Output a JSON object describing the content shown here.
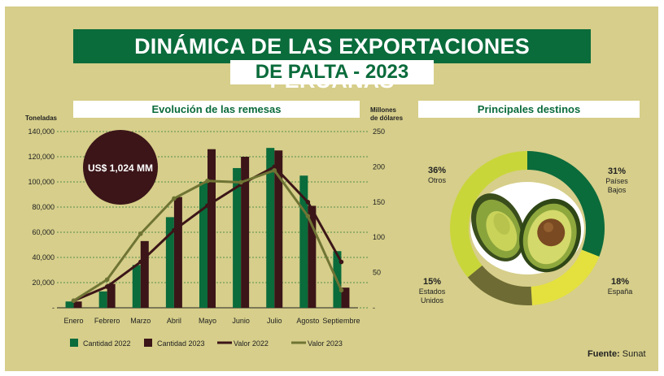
{
  "title": {
    "line1": "DINÁMICA DE LAS EXPORTACIONES PERUANAS",
    "line2": "DE PALTA - 2023"
  },
  "colors": {
    "background": "#d6ce8a",
    "brand_green": "#0a6b3b",
    "dark_brown": "#3b1518",
    "olive": "#6f7434",
    "lime": "#c9d63a",
    "yellow": "#e4e13f",
    "olive_dark": "#6e6b34"
  },
  "left_section": {
    "heading": "Evolución de las remesas",
    "left_axis_title": "Toneladas",
    "right_axis_title_1": "Millones",
    "right_axis_title_2": "de dólares",
    "badge": "US$ 1,024 MM"
  },
  "right_section": {
    "heading": "Principales destinos"
  },
  "source": {
    "label": "Fuente:",
    "value": "Sunat"
  },
  "chart_data": [
    {
      "type": "bar",
      "title": "Evolución de las remesas",
      "categories": [
        "Enero",
        "Febrero",
        "Marzo",
        "Abril",
        "Mayo",
        "Junio",
        "Julio",
        "Agosto",
        "Septiembre"
      ],
      "ylabel": "Toneladas",
      "ylim": [
        0,
        140000
      ],
      "yticks": [
        "-",
        "20,000",
        "40,000",
        "60,000",
        "80,000",
        "100,000",
        "120,000",
        "140,000"
      ],
      "y2label": "Millones de dólares",
      "y2lim": [
        0,
        250
      ],
      "y2ticks": [
        "-",
        "50",
        "100",
        "150",
        "200",
        "250"
      ],
      "series": [
        {
          "name": "Cantidad 2022",
          "kind": "bar",
          "axis": "left",
          "color": "#0a6b3b",
          "values": [
            5000,
            13000,
            34000,
            72000,
            100000,
            111000,
            127000,
            105000,
            45000
          ]
        },
        {
          "name": "Cantidad 2023",
          "kind": "bar",
          "axis": "left",
          "color": "#3b1518",
          "values": [
            5000,
            19000,
            53000,
            88000,
            126000,
            120000,
            125000,
            81000,
            16000
          ]
        },
        {
          "name": "Valor 2022",
          "kind": "line",
          "axis": "right",
          "color": "#3b1518",
          "values": [
            10,
            30,
            65,
            110,
            145,
            175,
            200,
            150,
            65
          ]
        },
        {
          "name": "Valor 2023",
          "kind": "line",
          "axis": "right",
          "color": "#6f7434",
          "values": [
            10,
            40,
            105,
            155,
            180,
            178,
            195,
            130,
            25
          ]
        }
      ],
      "legend": [
        "Cantidad 2022",
        "Cantidad 2023",
        "Valor 2022",
        "Valor 2023"
      ]
    },
    {
      "type": "pie",
      "style": "donut",
      "title": "Principales destinos",
      "slices": [
        {
          "name": "Países Bajos",
          "value": 31,
          "label": "31%",
          "name_line1": "Países",
          "name_line2": "Bajos",
          "color": "#0a6b3b"
        },
        {
          "name": "España",
          "value": 18,
          "label": "18%",
          "name_line1": "España",
          "name_line2": "",
          "color": "#e4e13f"
        },
        {
          "name": "Estados Unidos",
          "value": 15,
          "label": "15%",
          "name_line1": "Estados",
          "name_line2": "Unidos",
          "color": "#6e6b34"
        },
        {
          "name": "Otros",
          "value": 36,
          "label": "36%",
          "name_line1": "Otros",
          "name_line2": "",
          "color": "#c9d63a"
        }
      ]
    }
  ]
}
